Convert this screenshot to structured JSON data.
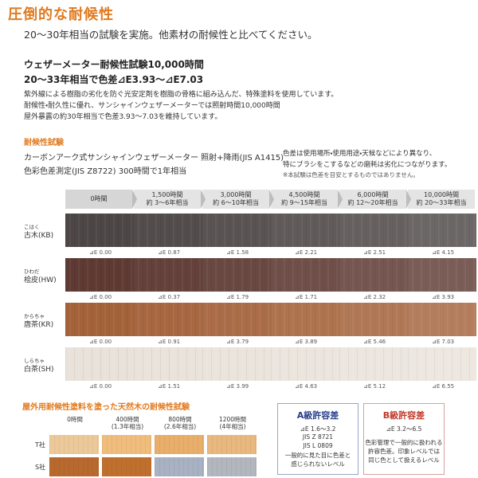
{
  "header": {
    "title": "圧倒的な耐候性",
    "subtitle": "20～30年相当の試験を実施。他素材の耐候性と比べてください。"
  },
  "summary": {
    "headline": [
      "ウェザーメーター耐候性試験10,000時間",
      "20～33年相当で色差⊿E3.93～⊿E7.03"
    ],
    "body": [
      "紫外線による樹脂の劣化を防ぐ光安定剤を樹脂の骨格に組み込んだ、特殊塗料を使用しています。",
      "耐候性・耐久性に優れ、サンシャインウェザーメーターでは照射時間10,000時間",
      "屋外暴露の約30年相当で色差3.93～7.03を維持しています。"
    ]
  },
  "test": {
    "heading": "耐候性試験",
    "method": [
      "カーボンアーク式サンシャインウェザーメーター 照射+降雨(JIS A1415)",
      "色彩色差測定(JIS Z8722) 300時間で1年相当"
    ],
    "notes": [
      "色差は使用場所・使用用途・天候などにより異なり、",
      "特にブラシをこするなどの磨耗は劣化につながります。",
      "※本試験は色差を目安とするものではありません。"
    ],
    "columns": [
      {
        "hours": "0時間"
      },
      {
        "hours": "1,500時間",
        "years": "約 3～6年相当"
      },
      {
        "hours": "3,000時間",
        "years": "約 6～10年相当"
      },
      {
        "hours": "4,500時間",
        "years": "約 9～15年相当"
      },
      {
        "hours": "6,000時間",
        "years": "約 12～20年相当"
      },
      {
        "hours": "10,000時間",
        "years": "約 20～33年相当"
      }
    ],
    "rows": [
      {
        "reading": "こはく",
        "name": "古木(KB)",
        "values": [
          "⊿E 0.00",
          "⊿E 0.87",
          "⊿E 1.58",
          "⊿E 2.21",
          "⊿E 2.51",
          "⊿E 4.15"
        ]
      },
      {
        "reading": "ひわだ",
        "name": "桧皮(HW)",
        "values": [
          "⊿E 0.00",
          "⊿E 0.37",
          "⊿E 1.79",
          "⊿E 1.71",
          "⊿E 2.32",
          "⊿E 3.93"
        ]
      },
      {
        "reading": "からちゃ",
        "name": "唐茶(KR)",
        "values": [
          "⊿E 0.00",
          "⊿E 0.91",
          "⊿E 3.79",
          "⊿E 3.89",
          "⊿E 5.46",
          "⊿E 7.03"
        ]
      },
      {
        "reading": "しらちゃ",
        "name": "白茶(SH)",
        "values": [
          "⊿E 0.00",
          "⊿E 1.51",
          "⊿E 3.99",
          "⊿E 4.63",
          "⊿E 5.12",
          "⊿E 6.55"
        ]
      }
    ]
  },
  "natural_wood": {
    "title": "屋外用耐候性塗料を塗った天然木の耐候性試験",
    "columns": [
      {
        "hours": "0時間"
      },
      {
        "hours": "400時間",
        "years": "(1.3年相当)"
      },
      {
        "hours": "800時間",
        "years": "(2.6年相当)"
      },
      {
        "hours": "1200時間",
        "years": "(4年相当)"
      }
    ],
    "rows": [
      "T社",
      "S社"
    ]
  },
  "tolerance": [
    {
      "title": "A級許容差",
      "lines": [
        "⊿E 1.6～3.2",
        "JIS Z 8721",
        "JIS L 0809",
        "一般的に見た目に色差と",
        "感じられないレベル"
      ]
    },
    {
      "title": "B級許容差",
      "lines": [
        "⊿E 3.2～6.5",
        "色彩管理で一般的に扱われる",
        "許容色差。印象レベルでは",
        "同じ色として扱えるレベル"
      ]
    }
  ]
}
